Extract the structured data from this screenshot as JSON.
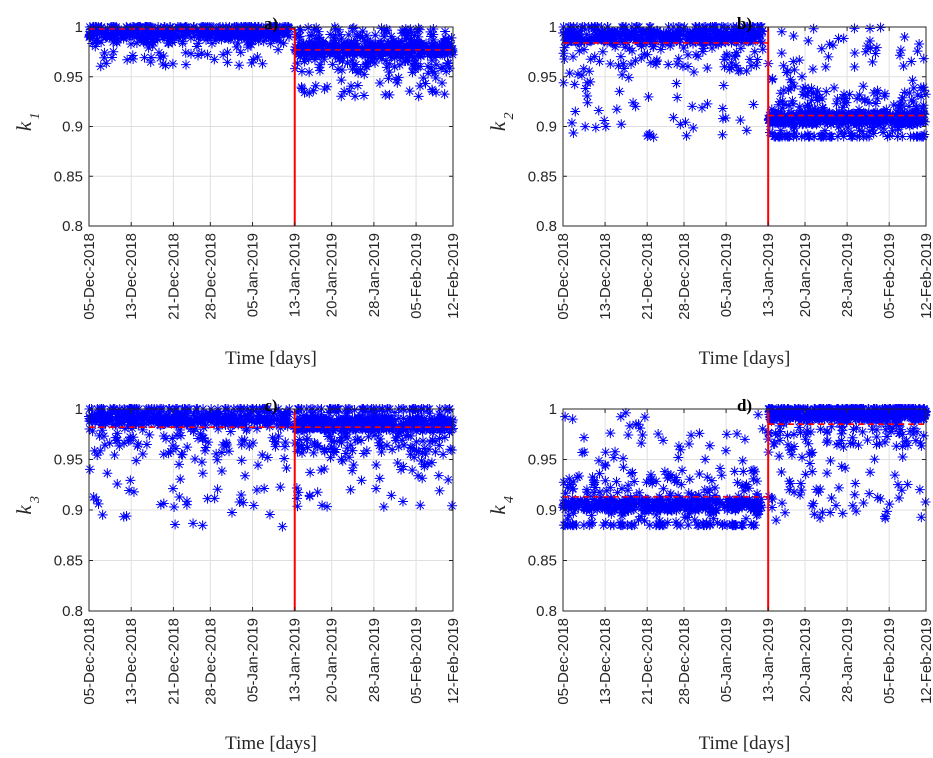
{
  "figure": {
    "background": "#ffffff"
  },
  "chart_data": [
    {
      "id": "a",
      "type": "scatter",
      "title": "a)",
      "ylabel": "k",
      "ylabel_sub": "1",
      "xlabel": "Time [days]",
      "x_ticks": [
        "05-Dec-2018",
        "13-Dec-2018",
        "21-Dec-2018",
        "28-Dec-2018",
        "05-Jan-2019",
        "13-Jan-2019",
        "20-Jan-2019",
        "28-Jan-2019",
        "05-Feb-2019",
        "12-Feb-2019"
      ],
      "xlim": [
        "05-Dec-2018",
        "12-Feb-2019"
      ],
      "ylim": [
        0.8,
        1
      ],
      "y_ticks": [
        "0.8",
        "0.85",
        "0.9",
        "0.95",
        "1"
      ],
      "grid": true,
      "marker": "asterisk",
      "marker_color": "#0000ff",
      "changepoint_date": "13-Jan-2019",
      "changepoint_color": "#ff0000",
      "mean_before": 0.998,
      "mean_after": 0.977,
      "point_groups": [
        {
          "x_start": "05-Dec-2018",
          "x_end": "12-Jan-2019",
          "y_low": 0.96,
          "y_high": 1.0,
          "mode": 0.995,
          "count": 520
        },
        {
          "x_start": "13-Jan-2019",
          "x_end": "12-Feb-2019",
          "y_low": 0.93,
          "y_high": 1.0,
          "mode": 0.978,
          "count": 560
        }
      ]
    },
    {
      "id": "b",
      "type": "scatter",
      "title": "b)",
      "ylabel": "k",
      "ylabel_sub": "2",
      "xlabel": "Time [days]",
      "x_ticks": [
        "05-Dec-2018",
        "13-Dec-2018",
        "21-Dec-2018",
        "28-Dec-2018",
        "05-Jan-2019",
        "13-Jan-2019",
        "20-Jan-2019",
        "28-Jan-2019",
        "05-Feb-2019",
        "12-Feb-2019"
      ],
      "xlim": [
        "05-Dec-2018",
        "12-Feb-2019"
      ],
      "ylim": [
        0.8,
        1
      ],
      "y_ticks": [
        "0.8",
        "0.85",
        "0.9",
        "0.95",
        "1"
      ],
      "grid": true,
      "marker": "asterisk",
      "marker_color": "#0000ff",
      "changepoint_date": "13-Jan-2019",
      "changepoint_color": "#ff0000",
      "mean_before": 0.984,
      "mean_after": 0.911,
      "point_groups": [
        {
          "x_start": "05-Dec-2018",
          "x_end": "12-Jan-2019",
          "y_low": 0.885,
          "y_high": 1.0,
          "mode": 0.99,
          "count": 560
        },
        {
          "x_start": "13-Jan-2019",
          "x_end": "12-Feb-2019",
          "y_low": 0.89,
          "y_high": 1.0,
          "mode": 0.908,
          "count": 600
        }
      ]
    },
    {
      "id": "c",
      "type": "scatter",
      "title": "c)",
      "ylabel": "k",
      "ylabel_sub": "3",
      "xlabel": "Time [days]",
      "x_ticks": [
        "05-Dec-2018",
        "13-Dec-2018",
        "21-Dec-2018",
        "28-Dec-2018",
        "05-Jan-2019",
        "13-Jan-2019",
        "20-Jan-2019",
        "28-Jan-2019",
        "05-Feb-2019",
        "12-Feb-2019"
      ],
      "xlim": [
        "05-Dec-2018",
        "12-Feb-2019"
      ],
      "ylim": [
        0.8,
        1
      ],
      "y_ticks": [
        "0.8",
        "0.85",
        "0.9",
        "0.95",
        "1"
      ],
      "grid": true,
      "marker": "asterisk",
      "marker_color": "#0000ff",
      "changepoint_date": "13-Jan-2019",
      "changepoint_color": "#ff0000",
      "mean_before": 0.982,
      "mean_after": 0.982,
      "point_groups": [
        {
          "x_start": "05-Dec-2018",
          "x_end": "12-Jan-2019",
          "y_low": 0.88,
          "y_high": 1.0,
          "mode": 0.99,
          "count": 540
        },
        {
          "x_start": "13-Jan-2019",
          "x_end": "12-Feb-2019",
          "y_low": 0.9,
          "y_high": 1.0,
          "mode": 0.985,
          "count": 620
        }
      ]
    },
    {
      "id": "d",
      "type": "scatter",
      "title": "d)",
      "ylabel": "k",
      "ylabel_sub": "4",
      "xlabel": "Time [days]",
      "x_ticks": [
        "05-Dec-2018",
        "13-Dec-2018",
        "21-Dec-2018",
        "28-Dec-2018",
        "05-Jan-2019",
        "13-Jan-2019",
        "20-Jan-2019",
        "28-Jan-2019",
        "05-Feb-2019",
        "12-Feb-2019"
      ],
      "xlim": [
        "05-Dec-2018",
        "12-Feb-2019"
      ],
      "ylim": [
        0.8,
        1
      ],
      "y_ticks": [
        "0.8",
        "0.85",
        "0.9",
        "0.95",
        "1"
      ],
      "grid": true,
      "marker": "asterisk",
      "marker_color": "#0000ff",
      "changepoint_date": "13-Jan-2019",
      "changepoint_color": "#ff0000",
      "mean_before": 0.913,
      "mean_after": 0.985,
      "point_groups": [
        {
          "x_start": "05-Dec-2018",
          "x_end": "12-Jan-2019",
          "y_low": 0.885,
          "y_high": 1.0,
          "mode": 0.905,
          "count": 560
        },
        {
          "x_start": "13-Jan-2019",
          "x_end": "12-Feb-2019",
          "y_low": 0.89,
          "y_high": 1.0,
          "mode": 0.995,
          "count": 620
        }
      ]
    }
  ]
}
